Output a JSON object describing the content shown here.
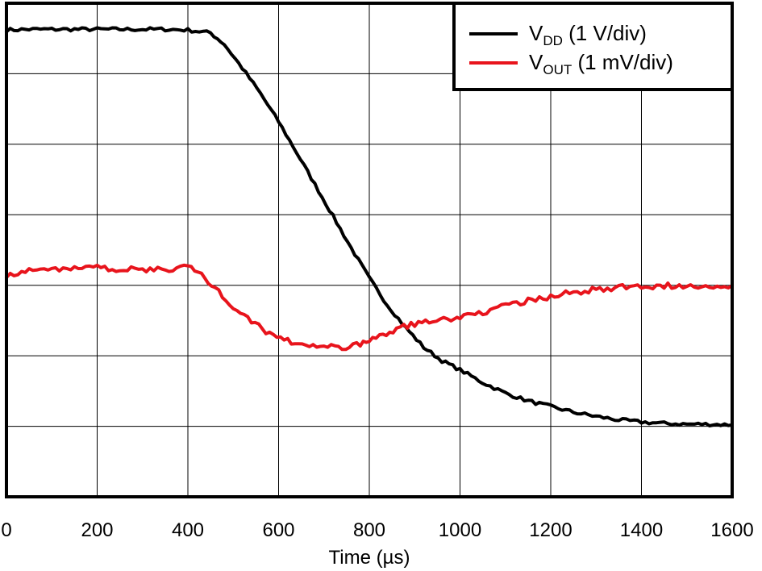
{
  "chart_data": {
    "type": "line",
    "xlabel": "Time (µs)",
    "ylabel": "",
    "xlim": [
      0,
      1600
    ],
    "ylim": [
      0,
      7
    ],
    "x_ticks": [
      "0",
      "200",
      "400",
      "600",
      "800",
      "1000",
      "1200",
      "1400",
      "1600"
    ],
    "grid": true,
    "legend_position": "top-right",
    "series": [
      {
        "name": "V_DD (1 V/div)",
        "legend_main": "V",
        "legend_sub": "DD",
        "legend_rest": " (1 V/div)",
        "color": "#000000",
        "x": [
          0,
          50,
          100,
          150,
          200,
          250,
          300,
          350,
          400,
          450,
          480,
          520,
          560,
          600,
          640,
          680,
          720,
          760,
          800,
          840,
          880,
          920,
          960,
          1000,
          1050,
          1100,
          1150,
          1200,
          1250,
          1300,
          1350,
          1400,
          1450,
          1500,
          1550,
          1600
        ],
        "values": [
          6.62,
          6.63,
          6.63,
          6.63,
          6.63,
          6.63,
          6.63,
          6.63,
          6.62,
          6.58,
          6.42,
          6.08,
          5.72,
          5.32,
          4.88,
          4.43,
          3.98,
          3.53,
          3.1,
          2.72,
          2.4,
          2.12,
          1.93,
          1.8,
          1.62,
          1.47,
          1.36,
          1.28,
          1.2,
          1.14,
          1.09,
          1.06,
          1.04,
          1.03,
          1.03,
          1.02
        ]
      },
      {
        "name": "V_OUT (1 mV/div)",
        "legend_main": "V",
        "legend_sub": "OUT",
        "legend_rest": " (1 mV/div)",
        "color": "#e8141c",
        "x": [
          0,
          50,
          100,
          150,
          200,
          250,
          300,
          350,
          400,
          430,
          460,
          500,
          540,
          580,
          620,
          660,
          700,
          740,
          780,
          800,
          830,
          860,
          900,
          940,
          980,
          1000,
          1050,
          1100,
          1150,
          1200,
          1250,
          1300,
          1350,
          1400,
          1450,
          1500,
          1550,
          1600
        ],
        "values": [
          3.15,
          3.2,
          3.23,
          3.25,
          3.25,
          3.23,
          3.22,
          3.22,
          3.28,
          3.15,
          2.95,
          2.7,
          2.48,
          2.32,
          2.22,
          2.15,
          2.12,
          2.12,
          2.16,
          2.22,
          2.3,
          2.38,
          2.45,
          2.5,
          2.53,
          2.55,
          2.62,
          2.7,
          2.78,
          2.84,
          2.9,
          2.94,
          2.97,
          2.98,
          2.99,
          3.0,
          3.0,
          3.0
        ]
      }
    ]
  }
}
